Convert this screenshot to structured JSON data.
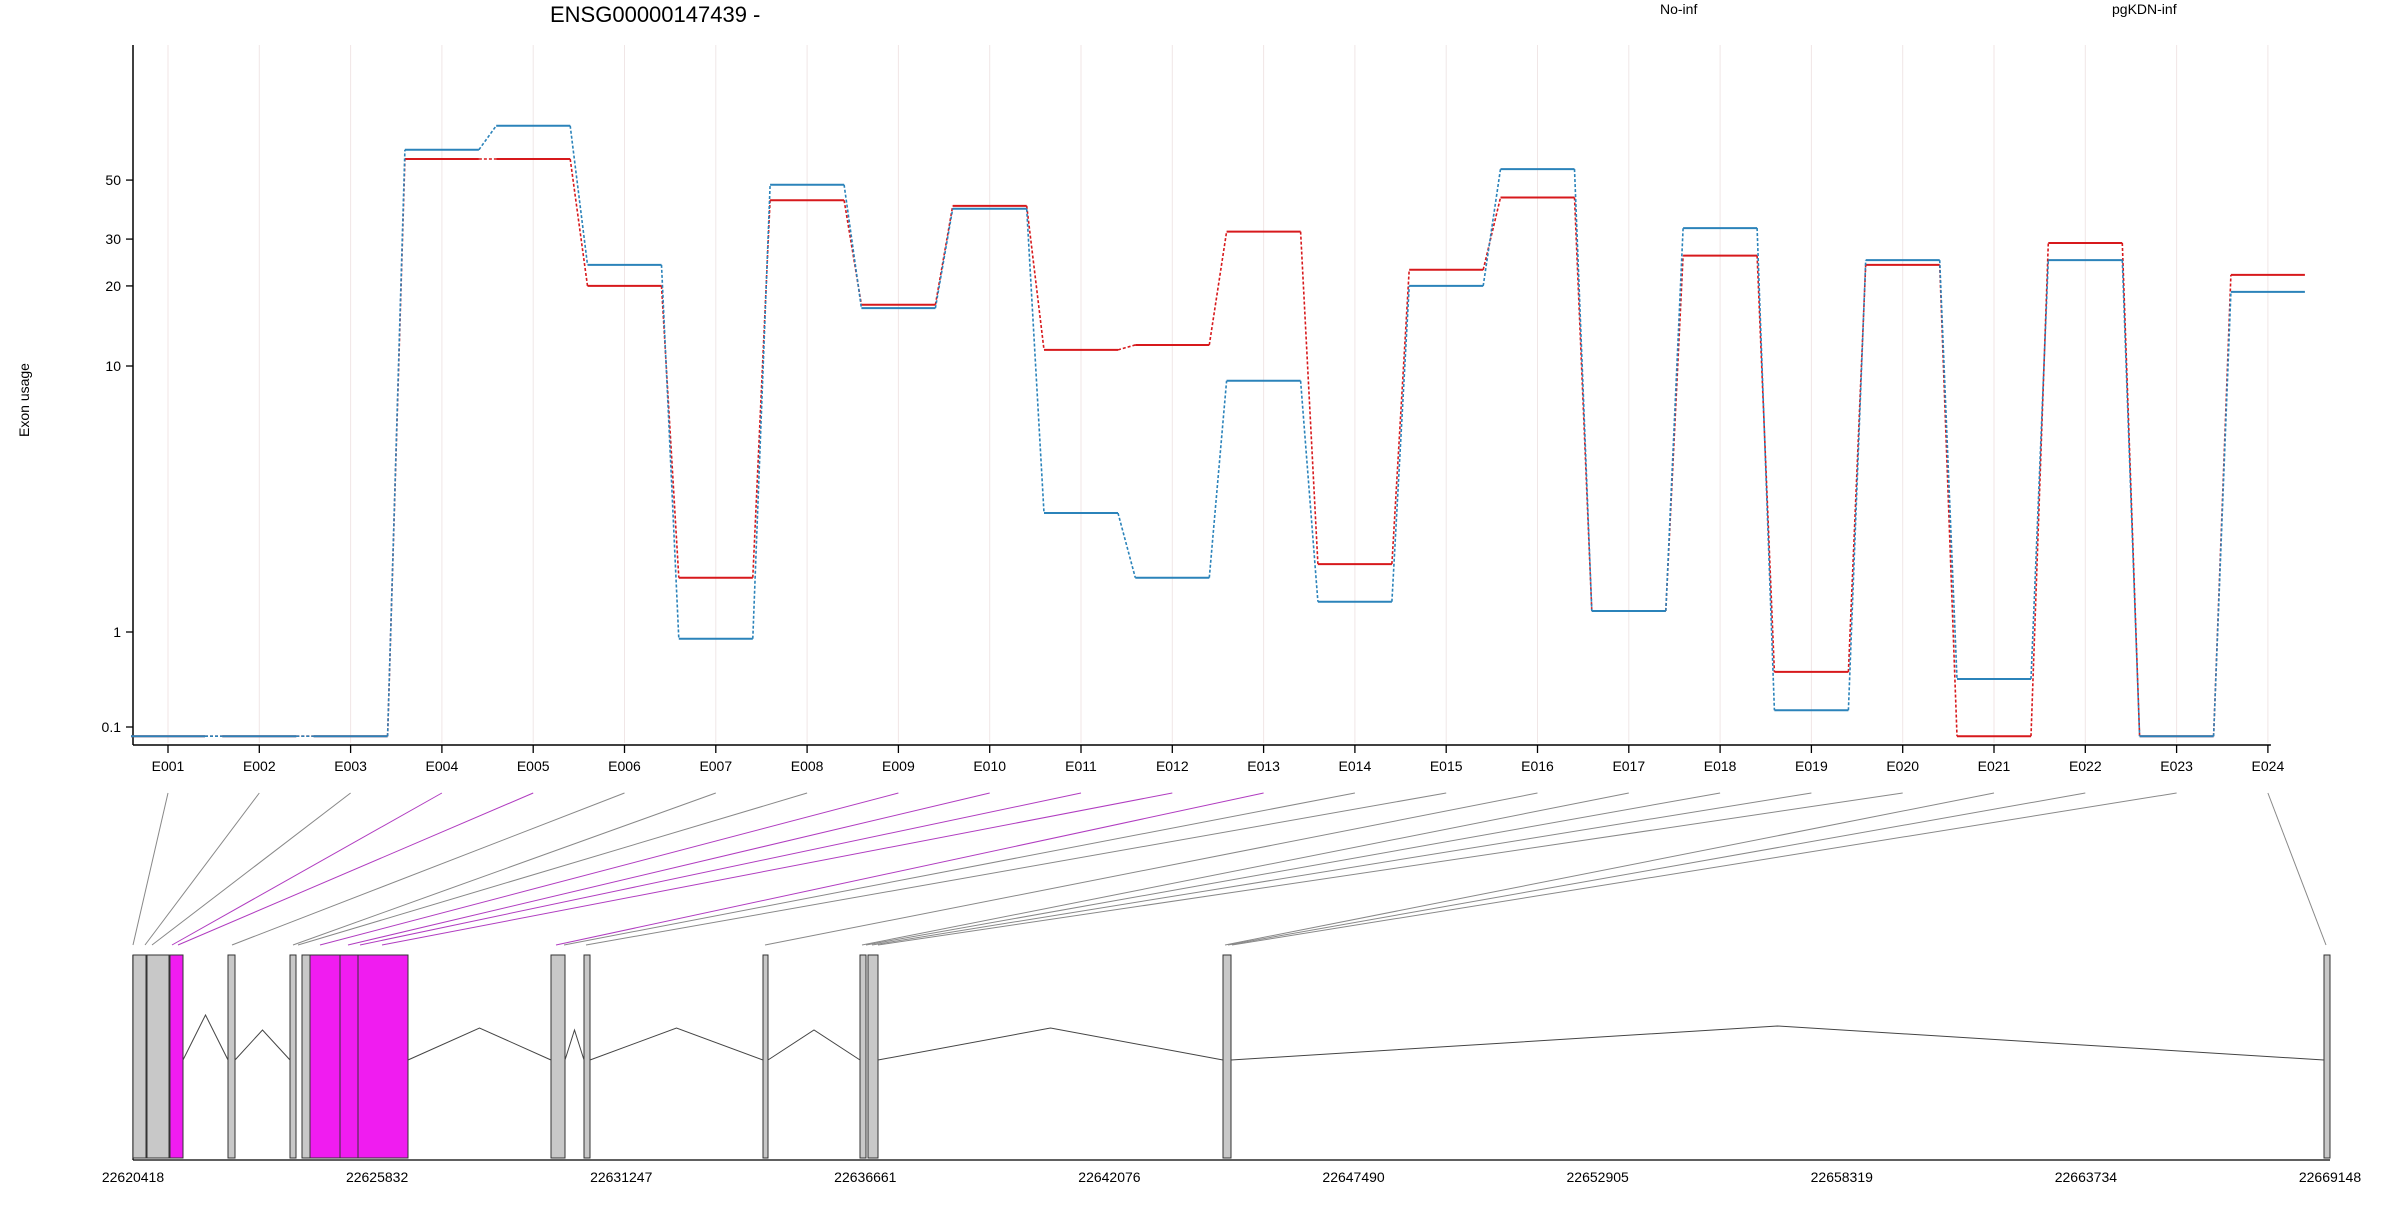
{
  "chart_data": {
    "type": "line",
    "title": "ENSG00000147439 -",
    "ylabel": "Exon usage",
    "y_scale": "log",
    "y_ticks": [
      0.1,
      1,
      10,
      20,
      30,
      50
    ],
    "categories": [
      "E001",
      "E002",
      "E003",
      "E004",
      "E005",
      "E006",
      "E007",
      "E008",
      "E009",
      "E010",
      "E011",
      "E012",
      "E013",
      "E014",
      "E015",
      "E016",
      "E017",
      "E018",
      "E019",
      "E020",
      "E021",
      "E022",
      "E023",
      "E024"
    ],
    "series": [
      {
        "name": "No-inf",
        "color": "#d7191c",
        "values": [
          0.08,
          0.08,
          0.08,
          60,
          60,
          20,
          1.6,
          42,
          17,
          40,
          11.5,
          12,
          32,
          1.8,
          23,
          43,
          1.2,
          26,
          0.38,
          24,
          0.08,
          29,
          0.08,
          22
        ]
      },
      {
        "name": "pgKDN-inf",
        "color": "#2b83ba",
        "values": [
          0.08,
          0.08,
          0.08,
          65,
          80,
          24,
          0.85,
          48,
          16.5,
          39,
          2.8,
          1.6,
          8.8,
          1.3,
          20,
          55,
          1.2,
          33,
          0.15,
          25,
          0.32,
          25,
          0.08,
          19
        ]
      }
    ],
    "genomic_ticks": [
      "22620418",
      "22625832",
      "22631247",
      "22636661",
      "22642076",
      "22647490",
      "22652905",
      "22658319",
      "22663734",
      "22669148"
    ]
  },
  "colors": {
    "series1": "#d7191c",
    "series2": "#2b83ba",
    "highlight_exon": "#f01cf0",
    "exon_fill": "#c8c8c8",
    "grid": "#f0e6e6"
  }
}
